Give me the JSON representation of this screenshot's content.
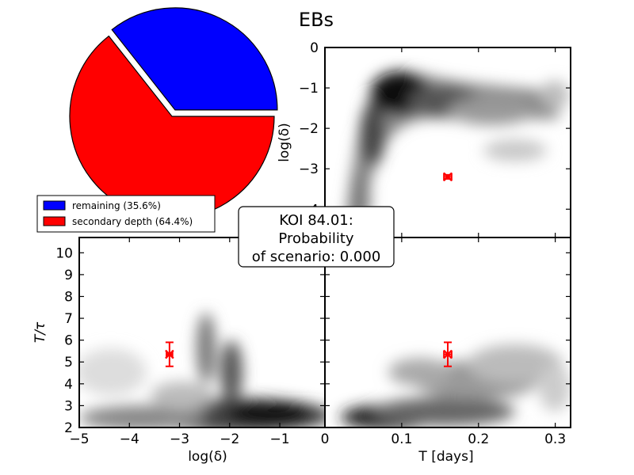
{
  "title": "EBs",
  "colors": {
    "remaining": "#0000ff",
    "secondary_depth": "#ff0000",
    "marker": "#ff0000",
    "density": "#000000"
  },
  "annotation": {
    "line1": "KOI 84.01:",
    "line2": "Probability",
    "line3": "of scenario: 0.000"
  },
  "chart_data": [
    {
      "type": "pie",
      "labels": [
        "remaining",
        "secondary depth"
      ],
      "values": [
        35.6,
        64.4
      ],
      "exploded": "remaining",
      "legend": [
        "remaining (35.6%)",
        "secondary depth (64.4%)"
      ],
      "legend_placement": "lower-left"
    },
    {
      "type": "heatmap",
      "xlabel": "",
      "ylabel": "log(δ)",
      "xlim": [
        0,
        0.32
      ],
      "ylim": [
        -4.7,
        0
      ],
      "yticks": [
        "0",
        "−1",
        "−2",
        "−3",
        "−4"
      ],
      "yticks_values": [
        0,
        -1,
        -2,
        -3,
        -4
      ],
      "marker": {
        "x": 0.16,
        "y": -3.2,
        "xerr": 0.005,
        "yerr": 0.05
      }
    },
    {
      "type": "heatmap",
      "xlabel": "log(δ)",
      "ylabel": "T/τ",
      "xlim": [
        -5,
        -0.1
      ],
      "ylim": [
        2,
        10.7
      ],
      "xticks": [
        "−5",
        "−4",
        "−3",
        "−2",
        "−1"
      ],
      "xticks_values": [
        -5,
        -4,
        -3,
        -2,
        -1
      ],
      "yticks": [
        "2",
        "3",
        "4",
        "5",
        "6",
        "7",
        "8",
        "9",
        "10"
      ],
      "yticks_values": [
        2,
        3,
        4,
        5,
        6,
        7,
        8,
        9,
        10
      ],
      "marker": {
        "x": -3.2,
        "y": 5.35,
        "xerr": 0.06,
        "yerr": 0.55
      }
    },
    {
      "type": "heatmap",
      "xlabel": "T [days]",
      "ylabel": "",
      "xlim": [
        0,
        0.32
      ],
      "ylim": [
        2,
        10.7
      ],
      "xticks": [
        "0",
        "0.1",
        "0.2",
        "0.3"
      ],
      "xticks_values": [
        0,
        0.1,
        0.2,
        0.3
      ],
      "marker": {
        "x": 0.16,
        "y": 5.35,
        "xerr": 0.005,
        "yerr": 0.55
      }
    }
  ]
}
